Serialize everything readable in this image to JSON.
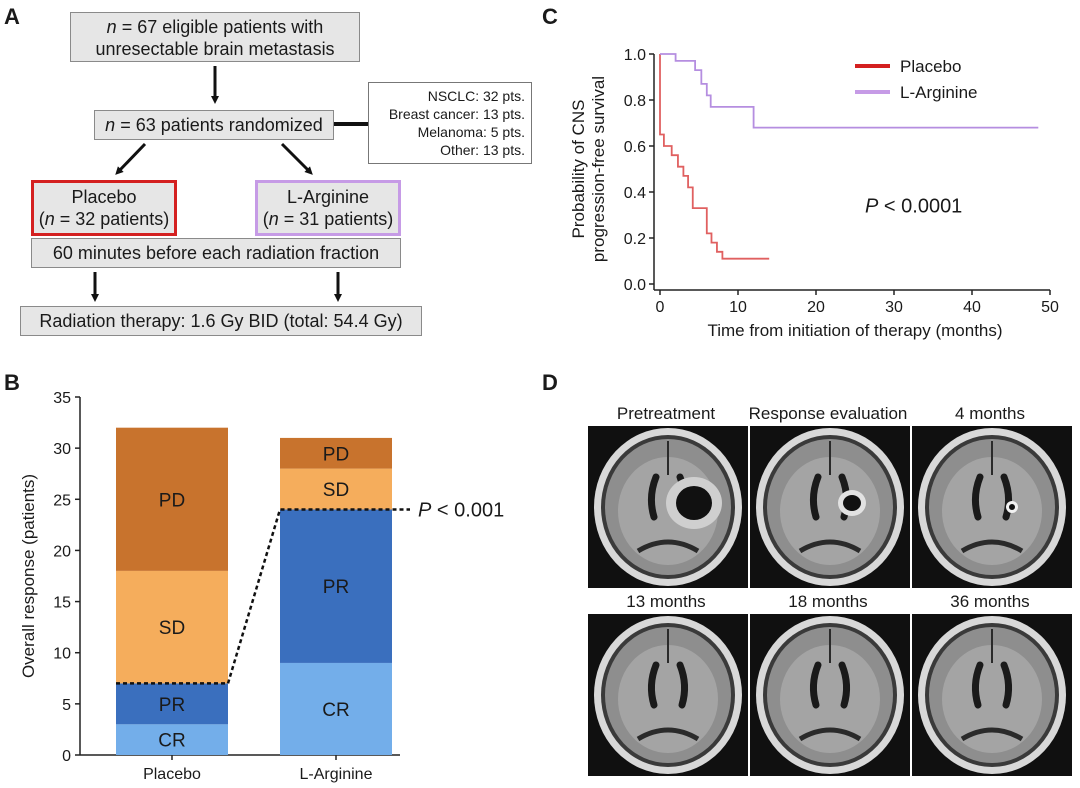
{
  "panels": {
    "a": "A",
    "b": "B",
    "c": "C",
    "d": "D"
  },
  "flow": {
    "eligible": {
      "line1_n": "n",
      "line1_rest": " = 67 eligible patients with",
      "line2": "unresectable brain metastasis"
    },
    "randomized": {
      "n": "n",
      "rest": " = 63 patients randomized"
    },
    "subtypes": [
      "NSCLC: 32 pts.",
      "Breast cancer: 13 pts.",
      "Melanoma: 5 pts.",
      "Other: 13 pts."
    ],
    "placebo": {
      "title": "Placebo",
      "n": "n",
      "rest": " = 32 patients)",
      "open": "("
    },
    "arginine": {
      "title": "L-Arginine",
      "n": "n",
      "rest": " = 31 patients)",
      "open": "("
    },
    "timing": "60 minutes before each radiation fraction",
    "radiation": "Radiation therapy: 1.6 Gy BID (total: 54.4 Gy)"
  },
  "chart_km": {
    "chart_data": {
      "type": "line",
      "xlabel": "Time from initiation of therapy (months)",
      "ylabel_line1": "Probability of CNS",
      "ylabel_line2": "progression-free survival",
      "xlim": [
        0,
        50
      ],
      "ylim": [
        0,
        1.0
      ],
      "xticks": [
        "0",
        "10",
        "20",
        "30",
        "40",
        "50"
      ],
      "yticks": [
        "0.0",
        "0.2",
        "0.4",
        "0.6",
        "0.8",
        "1.0"
      ],
      "annotation_p": "P",
      "annotation_rest": " < 0.0001",
      "series": [
        {
          "name": "Placebo",
          "color": "#e06060",
          "x": [
            0,
            0,
            0.5,
            0.5,
            1.5,
            1.5,
            2.3,
            2.3,
            3,
            3,
            3.6,
            3.6,
            4.2,
            4.2,
            6,
            6,
            6.6,
            6.6,
            7.3,
            7.3,
            8,
            8,
            14
          ],
          "y": [
            1.0,
            0.65,
            0.65,
            0.6,
            0.6,
            0.56,
            0.56,
            0.51,
            0.51,
            0.47,
            0.47,
            0.42,
            0.42,
            0.33,
            0.33,
            0.22,
            0.22,
            0.18,
            0.18,
            0.14,
            0.14,
            0.11,
            0.11
          ]
        },
        {
          "name": "L-Arginine",
          "color": "#b58ee0",
          "x": [
            0,
            2,
            2,
            4.5,
            4.5,
            5.3,
            5.3,
            6,
            6,
            6.5,
            6.5,
            12,
            12,
            48.5
          ],
          "y": [
            1.0,
            1.0,
            0.97,
            0.97,
            0.93,
            0.93,
            0.87,
            0.87,
            0.82,
            0.82,
            0.77,
            0.77,
            0.68,
            0.68
          ]
        }
      ],
      "legend": [
        {
          "name": "Placebo",
          "color": "#d42020"
        },
        {
          "name": "L-Arginine",
          "color": "#c69be6"
        }
      ]
    }
  },
  "chart_bar": {
    "chart_data": {
      "type": "bar",
      "stacked": true,
      "ylabel": "Overall response (patients)",
      "ylim": [
        0,
        35
      ],
      "yticks": [
        "0",
        "5",
        "10",
        "15",
        "20",
        "25",
        "30",
        "35"
      ],
      "categories": [
        "Placebo",
        "L-Arginine"
      ],
      "annotation_p": "P",
      "annotation_rest": " < 0.001",
      "series": [
        {
          "name": "CR",
          "values": [
            3,
            9
          ],
          "colors": [
            "#73aeea",
            "#73aeea"
          ]
        },
        {
          "name": "PR",
          "values": [
            4,
            15
          ],
          "colors": [
            "#3a6fbe",
            "#3a6fbe"
          ]
        },
        {
          "name": "SD",
          "values": [
            11,
            4
          ],
          "colors": [
            "#f5ad5c",
            "#f5ad5c"
          ]
        },
        {
          "name": "PD",
          "values": [
            14,
            3
          ],
          "colors": [
            "#c8732d",
            "#c8732d"
          ]
        }
      ]
    }
  },
  "mri": {
    "titles": [
      "Pretreatment",
      "Response evaluation",
      "4 months",
      "13 months",
      "18 months",
      "36 months"
    ]
  }
}
